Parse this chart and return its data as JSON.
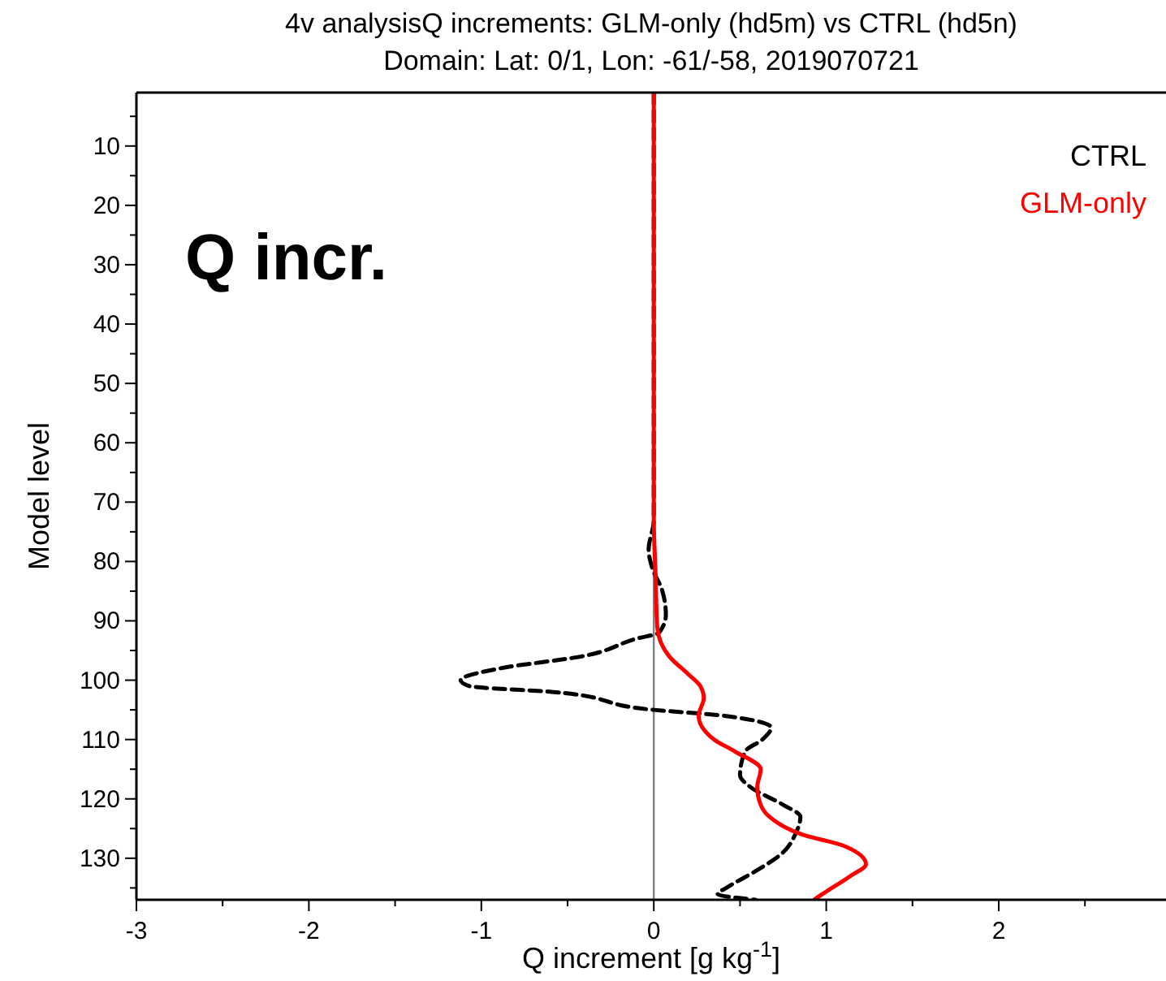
{
  "chart_data": {
    "type": "line",
    "title": "4v analysisQ increments: GLM-only (hd5m) vs CTRL (hd5n)",
    "subtitle": "Domain: Lat: 0/1, Lon: -61/-58, 2019070721",
    "xlabel": "Q increment [g kg$^{-1}$]",
    "ylabel": "Model level",
    "annotations": [
      "Q incr."
    ],
    "xlim": [
      -3,
      2.97
    ],
    "xticks": [
      -3,
      -2,
      -1,
      0,
      1,
      2
    ],
    "ylim": [
      137,
      1
    ],
    "yticks": [
      10,
      20,
      30,
      40,
      50,
      60,
      70,
      80,
      90,
      100,
      110,
      120,
      130
    ],
    "legend": "top right",
    "ref_lines": [
      {
        "axis": "x",
        "value": 0,
        "color": "#808080"
      }
    ],
    "series": [
      {
        "name": "CTRL",
        "color": "#000000",
        "line_style": "dashed",
        "x": [
          0,
          0,
          -0.03,
          -0.01,
          0.05,
          0.07,
          0.03,
          -0.1,
          -0.42,
          -0.89,
          -1.12,
          -1.07,
          -0.58,
          0,
          0.41,
          0.68,
          0.63,
          0.53,
          0.5,
          0.56,
          0.75,
          0.85,
          0.82,
          0.75,
          0.6,
          0.42,
          0.37,
          0.59
        ],
        "values": [
          1,
          73,
          78,
          81,
          85,
          89,
          92,
          93,
          96,
          98,
          100,
          101,
          102,
          105,
          106,
          108,
          110,
          112,
          116,
          118,
          121,
          123,
          126,
          129,
          132,
          135,
          136,
          137
        ]
      },
      {
        "name": "GLM-only",
        "color": "#ff0000",
        "line_style": "solid",
        "x": [
          0,
          0,
          0.01,
          0.02,
          0.09,
          0.2,
          0.27,
          0.29,
          0.26,
          0.35,
          0.47,
          0.62,
          0.6,
          0.62,
          0.67,
          0.86,
          1.11,
          1.23,
          1.14,
          0.98,
          0.93
        ],
        "values": [
          1,
          73,
          82,
          91,
          96,
          99,
          101,
          103,
          106,
          110,
          112,
          115,
          118,
          121,
          123,
          126,
          128,
          131,
          133,
          136,
          137
        ]
      }
    ]
  }
}
